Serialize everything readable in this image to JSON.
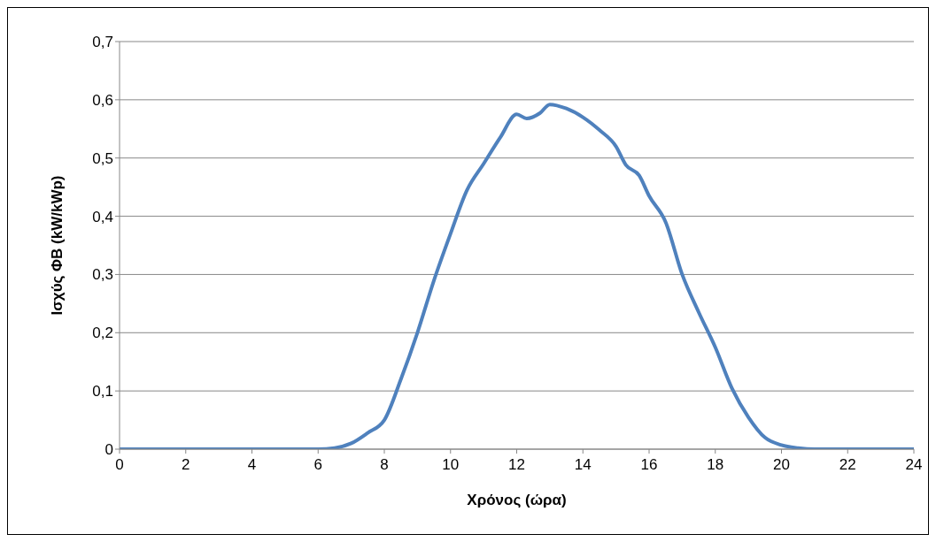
{
  "chart_data": {
    "type": "line",
    "xlabel": "Χρόνος (ώρα)",
    "ylabel": "Ισχύς ΦΒ (kW/kWp)",
    "x": [
      0,
      1,
      2,
      3,
      4,
      5,
      6,
      6.5,
      7,
      7.5,
      8,
      8.5,
      9,
      9.5,
      10,
      10.5,
      11,
      11.5,
      12,
      12.3,
      12.7,
      13,
      13.5,
      14,
      14.5,
      15,
      15.3,
      15.7,
      16,
      16.5,
      17,
      17.5,
      18,
      18.5,
      19,
      19.5,
      20,
      20.5,
      21,
      22,
      23,
      24
    ],
    "series": [
      {
        "color": "#4f81bd",
        "values": [
          0,
          0,
          0,
          0,
          0,
          0,
          0,
          0.002,
          0.01,
          0.028,
          0.05,
          0.12,
          0.2,
          0.29,
          0.37,
          0.445,
          0.49,
          0.535,
          0.575,
          0.568,
          0.577,
          0.592,
          0.585,
          0.57,
          0.548,
          0.52,
          0.488,
          0.47,
          0.435,
          0.39,
          0.3,
          0.235,
          0.175,
          0.105,
          0.055,
          0.02,
          0.007,
          0.002,
          0,
          0,
          0,
          0
        ]
      }
    ],
    "xlim": [
      0,
      24
    ],
    "xticks": [
      0,
      2,
      4,
      6,
      8,
      10,
      12,
      14,
      16,
      18,
      20,
      22,
      24
    ],
    "ylim": [
      0,
      0.7
    ],
    "yticks": [
      0,
      {
        "value": 0.1,
        "label": "0,1"
      },
      {
        "value": 0.2,
        "label": "0,2"
      },
      {
        "value": 0.3,
        "label": "0,3"
      },
      {
        "value": 0.4,
        "label": "0,4"
      },
      {
        "value": 0.5,
        "label": "0,5"
      },
      {
        "value": 0.6,
        "label": "0,6"
      },
      {
        "value": 0.7,
        "label": "0,7"
      }
    ],
    "grid": "y",
    "marker": "none",
    "line_style": "solid"
  }
}
